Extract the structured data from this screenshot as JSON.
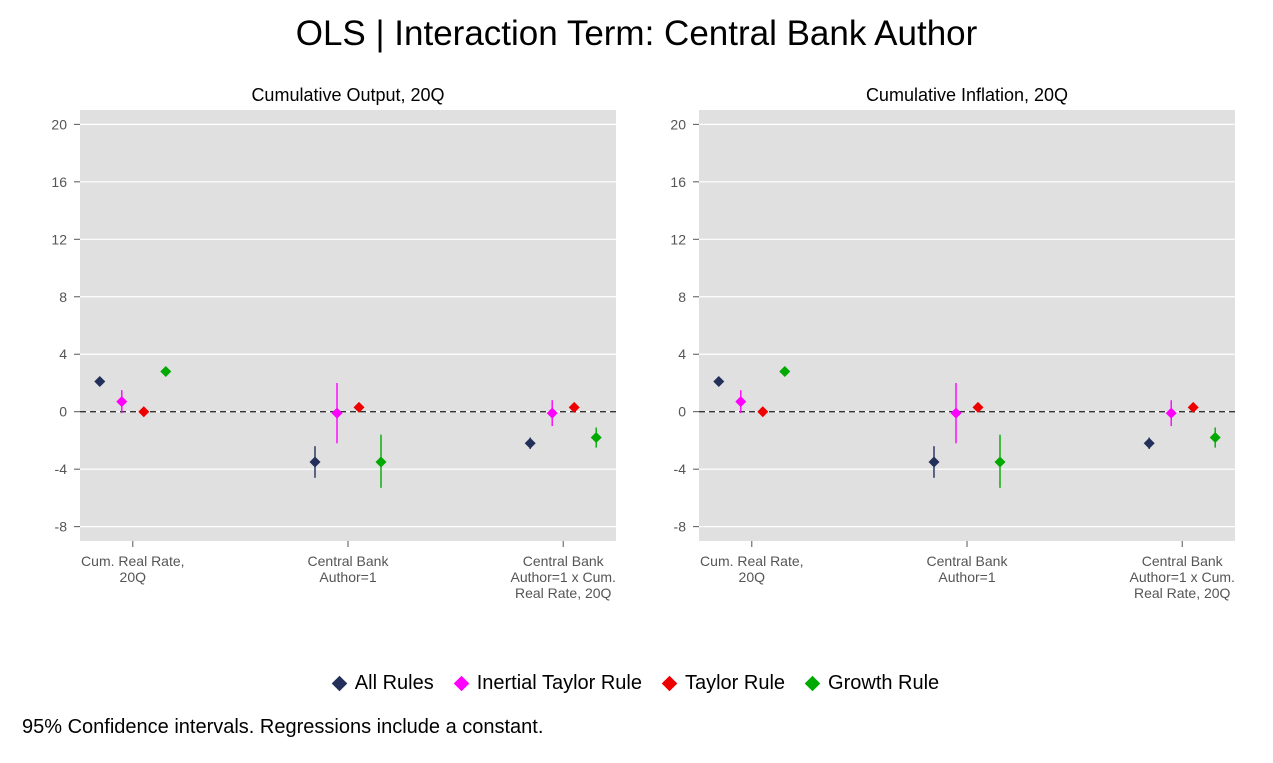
{
  "title": "OLS | Interaction Term: Central Bank Author",
  "footnote": "95% Confidence intervals. Regressions include a constant.",
  "legend": [
    {
      "label": "All Rules",
      "color": "#22305a"
    },
    {
      "label": "Inertial Taylor Rule",
      "color": "#ff00ff"
    },
    {
      "label": "Taylor Rule",
      "color": "#ee0000"
    },
    {
      "label": "Growth Rule",
      "color": "#00aa00"
    }
  ],
  "chart_data": [
    {
      "type": "scatter",
      "title": "Cumulative Output, 20Q",
      "ylim": [
        -9,
        21
      ],
      "yticks": [
        20,
        16,
        12,
        8,
        4,
        0,
        -4,
        -8
      ],
      "grid": true,
      "reference_line": 0,
      "categories": [
        [
          "Cum. Real Rate,",
          "20Q"
        ],
        [
          "Central Bank",
          "Author=1"
        ],
        [
          "Central Bank",
          "Author=1 x Cum.",
          "Real Rate, 20Q"
        ]
      ],
      "series": [
        {
          "name": "All Rules",
          "values": [
            2.1,
            -3.5,
            -2.2
          ],
          "lower": [
            null,
            -4.6,
            -2.6
          ],
          "upper": [
            null,
            -2.4,
            -1.8
          ]
        },
        {
          "name": "Inertial Taylor Rule",
          "values": [
            0.7,
            -0.1,
            -0.1
          ],
          "lower": [
            -0.1,
            -2.2,
            -1.0
          ],
          "upper": [
            1.5,
            2.0,
            0.8
          ]
        },
        {
          "name": "Taylor Rule",
          "values": [
            0.0,
            0.3,
            0.3
          ],
          "lower": [
            null,
            null,
            null
          ],
          "upper": [
            null,
            null,
            null
          ]
        },
        {
          "name": "Growth Rule",
          "values": [
            2.8,
            -3.5,
            -1.8
          ],
          "lower": [
            null,
            -5.3,
            -2.5
          ],
          "upper": [
            null,
            -1.6,
            -1.1
          ]
        }
      ]
    },
    {
      "type": "scatter",
      "title": "Cumulative Inflation, 20Q",
      "ylim": [
        -9,
        21
      ],
      "yticks": [
        20,
        16,
        12,
        8,
        4,
        0,
        -4,
        -8
      ],
      "grid": true,
      "reference_line": 0,
      "categories": [
        [
          "Cum. Real Rate,",
          "20Q"
        ],
        [
          "Central Bank",
          "Author=1"
        ],
        [
          "Central Bank",
          "Author=1 x Cum.",
          "Real Rate, 20Q"
        ]
      ],
      "series": [
        {
          "name": "All Rules",
          "values": [
            2.1,
            -3.5,
            -2.2
          ],
          "lower": [
            null,
            -4.6,
            -2.6
          ],
          "upper": [
            null,
            -2.4,
            -1.8
          ]
        },
        {
          "name": "Inertial Taylor Rule",
          "values": [
            0.7,
            -0.1,
            -0.1
          ],
          "lower": [
            -0.1,
            -2.2,
            -1.0
          ],
          "upper": [
            1.5,
            2.0,
            0.8
          ]
        },
        {
          "name": "Taylor Rule",
          "values": [
            0.0,
            0.3,
            0.3
          ],
          "lower": [
            null,
            null,
            null
          ],
          "upper": [
            null,
            null,
            null
          ]
        },
        {
          "name": "Growth Rule",
          "values": [
            2.8,
            -3.5,
            -1.8
          ],
          "lower": [
            null,
            -5.3,
            -2.5
          ],
          "upper": [
            null,
            -1.6,
            -1.1
          ]
        }
      ]
    }
  ]
}
